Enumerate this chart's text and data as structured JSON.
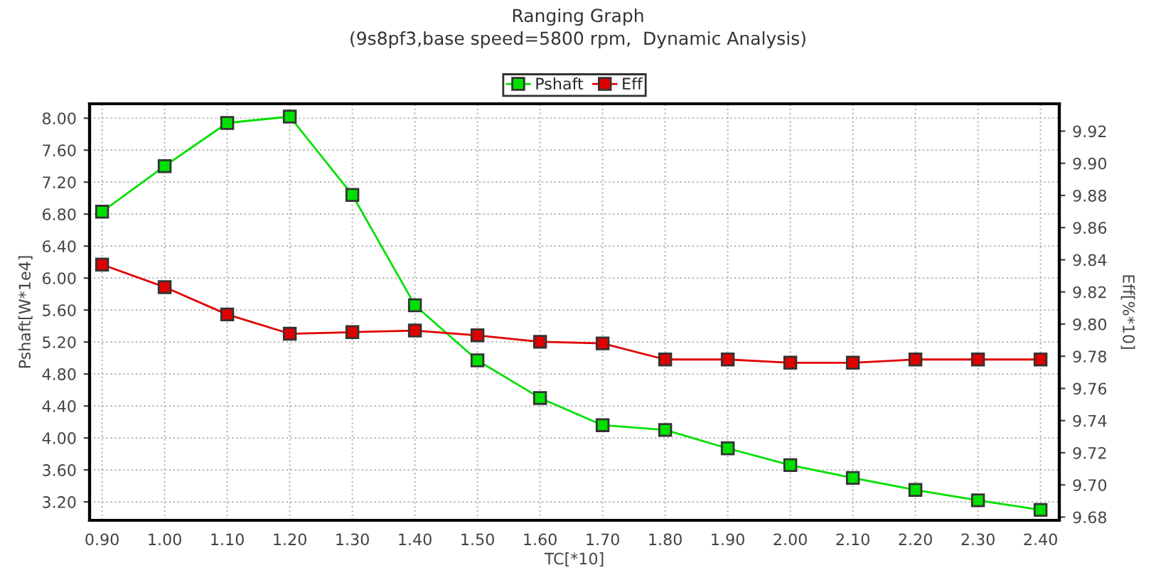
{
  "chart_data": {
    "type": "line",
    "title": "Ranging Graph",
    "subtitle": "(9s8pf3,base speed=5800 rpm,  Dynamic Analysis)",
    "xlabel": "TC[*10]",
    "ylabel": "Pshaft[W*1e4]",
    "y2label": "Eff[%*10]",
    "x": [
      0.9,
      1.0,
      1.1,
      1.2,
      1.3,
      1.4,
      1.5,
      1.6,
      1.7,
      1.8,
      1.9,
      2.0,
      2.1,
      2.2,
      2.3,
      2.4
    ],
    "series": [
      {
        "name": "Pshaft",
        "color": "#00e000",
        "values": [
          6.83,
          7.4,
          7.94,
          8.02,
          7.04,
          5.66,
          4.97,
          4.5,
          4.16,
          4.1,
          3.87,
          3.66,
          3.5,
          3.35,
          3.22,
          3.1
        ]
      },
      {
        "name": "Eff",
        "color": "#e00000",
        "axis": "y2",
        "values": [
          9.837,
          9.823,
          9.806,
          9.794,
          9.795,
          9.796,
          9.793,
          9.789,
          9.788,
          9.778,
          9.778,
          9.776,
          9.776,
          9.778,
          9.778,
          9.778
        ]
      }
    ],
    "xlim": [
      0.88,
      2.43
    ],
    "xticks": [
      {
        "value": 0.9,
        "label": "0.90"
      },
      {
        "value": 1.0,
        "label": "1.00"
      },
      {
        "value": 1.1,
        "label": "1.10"
      },
      {
        "value": 1.2,
        "label": "1.20"
      },
      {
        "value": 1.3,
        "label": "1.30"
      },
      {
        "value": 1.4,
        "label": "1.40"
      },
      {
        "value": 1.5,
        "label": "1.50"
      },
      {
        "value": 1.6,
        "label": "1.60"
      },
      {
        "value": 1.7,
        "label": "1.70"
      },
      {
        "value": 1.8,
        "label": "1.80"
      },
      {
        "value": 1.9,
        "label": "1.90"
      },
      {
        "value": 2.0,
        "label": "2.00"
      },
      {
        "value": 2.1,
        "label": "2.10"
      },
      {
        "value": 2.2,
        "label": "2.20"
      },
      {
        "value": 2.3,
        "label": "2.30"
      },
      {
        "value": 2.4,
        "label": "2.40"
      }
    ],
    "ylim": [
      2.97,
      8.18
    ],
    "yticks": [
      {
        "value": 3.2,
        "label": "3.20"
      },
      {
        "value": 3.6,
        "label": "3.60"
      },
      {
        "value": 4.0,
        "label": "4.00"
      },
      {
        "value": 4.4,
        "label": "4.40"
      },
      {
        "value": 4.8,
        "label": "4.80"
      },
      {
        "value": 5.2,
        "label": "5.20"
      },
      {
        "value": 5.6,
        "label": "5.60"
      },
      {
        "value": 6.0,
        "label": "6.00"
      },
      {
        "value": 6.4,
        "label": "6.40"
      },
      {
        "value": 6.8,
        "label": "6.80"
      },
      {
        "value": 7.2,
        "label": "7.20"
      },
      {
        "value": 7.6,
        "label": "7.60"
      },
      {
        "value": 8.0,
        "label": "8.00"
      }
    ],
    "y2lim": [
      9.678,
      9.937
    ],
    "y2ticks": [
      {
        "value": 9.68,
        "label": "9.68"
      },
      {
        "value": 9.7,
        "label": "9.70"
      },
      {
        "value": 9.72,
        "label": "9.72"
      },
      {
        "value": 9.74,
        "label": "9.74"
      },
      {
        "value": 9.76,
        "label": "9.76"
      },
      {
        "value": 9.78,
        "label": "9.78"
      },
      {
        "value": 9.8,
        "label": "9.80"
      },
      {
        "value": 9.82,
        "label": "9.82"
      },
      {
        "value": 9.84,
        "label": "9.84"
      },
      {
        "value": 9.86,
        "label": "9.86"
      },
      {
        "value": 9.88,
        "label": "9.88"
      },
      {
        "value": 9.9,
        "label": "9.90"
      },
      {
        "value": 9.92,
        "label": "9.92"
      }
    ],
    "grid": true,
    "legend": "top",
    "marker": "square",
    "line_style": "solid"
  }
}
